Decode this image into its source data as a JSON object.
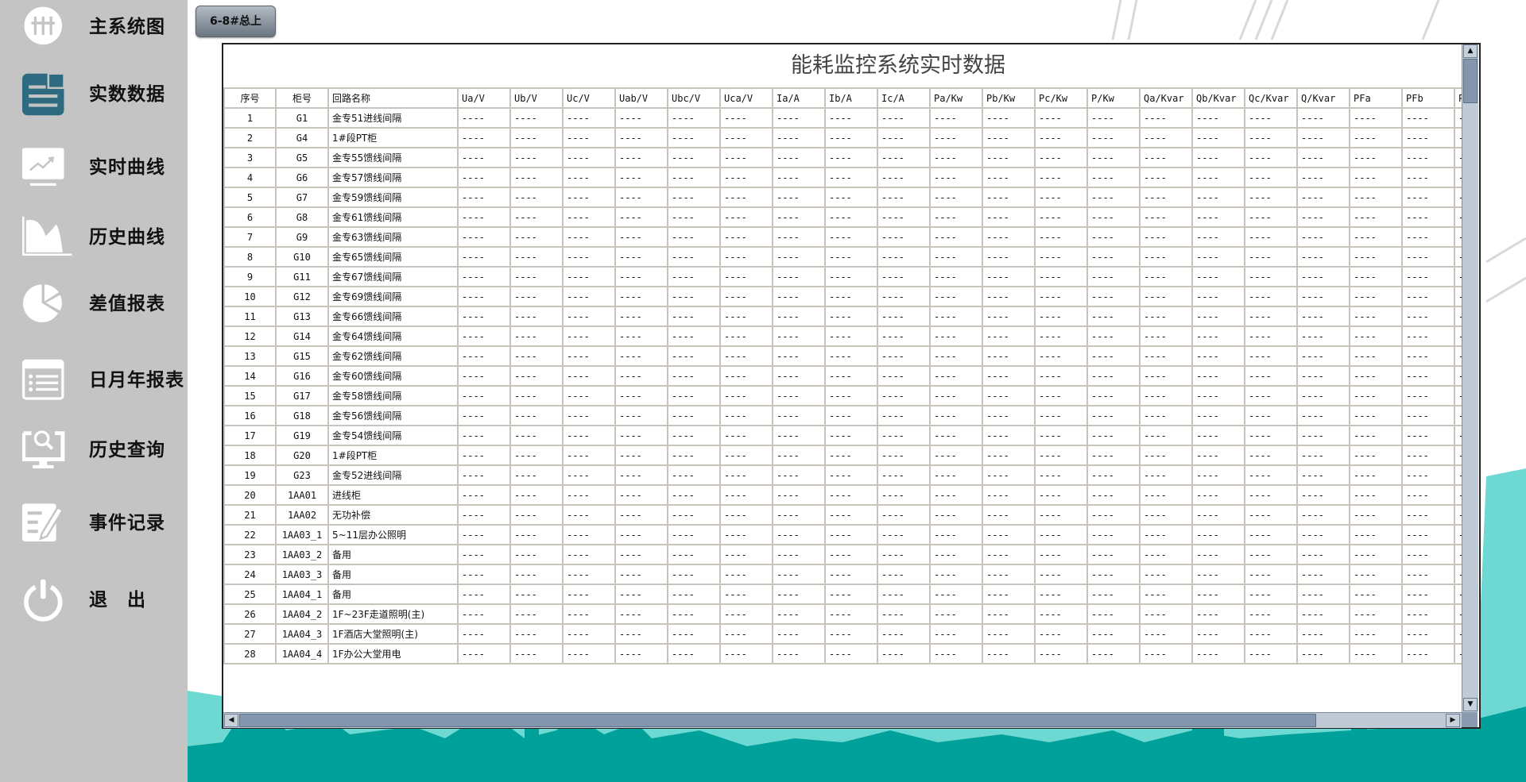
{
  "sidebar": {
    "items": [
      {
        "label": "主系统图",
        "icon": "power-grid-icon",
        "active": false
      },
      {
        "label": "实数数据",
        "icon": "data-document-icon",
        "active": true
      },
      {
        "label": "实时曲线",
        "icon": "trend-monitor-icon",
        "active": false
      },
      {
        "label": "历史曲线",
        "icon": "area-chart-icon",
        "active": false
      },
      {
        "label": "差值报表",
        "icon": "pie-chart-icon",
        "active": false
      },
      {
        "label": "日月年报表",
        "icon": "list-report-icon",
        "active": false
      },
      {
        "label": "历史查询",
        "icon": "monitor-search-icon",
        "active": false
      },
      {
        "label": "事件记录",
        "icon": "edit-log-icon",
        "active": false
      },
      {
        "label": "退　出",
        "icon": "power-icon",
        "active": false
      }
    ],
    "active_color": "#2f6b80"
  },
  "toolbar": {
    "section_button": "6-8#总上"
  },
  "panel": {
    "title": "能耗监控系统实时数据",
    "columns": [
      "序号",
      "柜号",
      "回路名称",
      "Ua/V",
      "Ub/V",
      "Uc/V",
      "Uab/V",
      "Ubc/V",
      "Uca/V",
      "Ia/A",
      "Ib/A",
      "Ic/A",
      "Pa/Kw",
      "Pb/Kw",
      "Pc/Kw",
      "P/Kw",
      "Qa/Kvar",
      "Qb/Kvar",
      "Qc/Kvar",
      "Q/Kvar",
      "PFa",
      "PFb",
      "P"
    ],
    "empty_value": "----",
    "rows": [
      [
        "1",
        "G1",
        "金专51进线间隔"
      ],
      [
        "2",
        "G4",
        "1#段PT柜"
      ],
      [
        "3",
        "G5",
        "金专55馈线间隔"
      ],
      [
        "4",
        "G6",
        "金专57馈线间隔"
      ],
      [
        "5",
        "G7",
        "金专59馈线间隔"
      ],
      [
        "6",
        "G8",
        "金专61馈线间隔"
      ],
      [
        "7",
        "G9",
        "金专63馈线间隔"
      ],
      [
        "8",
        "G10",
        "金专65馈线间隔"
      ],
      [
        "9",
        "G11",
        "金专67馈线间隔"
      ],
      [
        "10",
        "G12",
        "金专69馈线间隔"
      ],
      [
        "11",
        "G13",
        "金专66馈线间隔"
      ],
      [
        "12",
        "G14",
        "金专64馈线间隔"
      ],
      [
        "13",
        "G15",
        "金专62馈线间隔"
      ],
      [
        "14",
        "G16",
        "金专60馈线间隔"
      ],
      [
        "15",
        "G17",
        "金专58馈线间隔"
      ],
      [
        "16",
        "G18",
        "金专56馈线间隔"
      ],
      [
        "17",
        "G19",
        "金专54馈线间隔"
      ],
      [
        "18",
        "G20",
        "1#段PT柜"
      ],
      [
        "19",
        "G23",
        "金专52进线间隔"
      ],
      [
        "20",
        "1AA01",
        "进线柜"
      ],
      [
        "21",
        "1AA02",
        "无功补偿"
      ],
      [
        "22",
        "1AA03_1",
        "5~11层办公照明"
      ],
      [
        "23",
        "1AA03_2",
        "备用"
      ],
      [
        "24",
        "1AA03_3",
        "备用"
      ],
      [
        "25",
        "1AA04_1",
        "备用"
      ],
      [
        "26",
        "1AA04_2",
        "1F~23F走道照明(主)"
      ],
      [
        "27",
        "1AA04_3",
        "1F酒店大堂照明(主)"
      ],
      [
        "28",
        "1AA04_4",
        "1F办公大堂用电"
      ]
    ]
  },
  "colors": {
    "sidebar_bg": "#c4c4c4",
    "skyline_light": "#6dd9d2",
    "skyline_dark": "#00a19a",
    "grid": "#c8c4bc"
  }
}
